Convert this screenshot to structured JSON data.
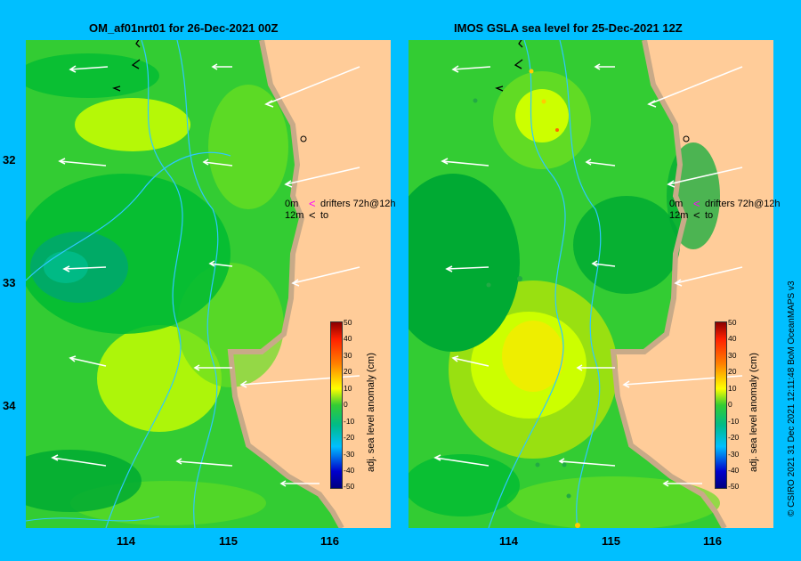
{
  "panels": [
    {
      "title": "OM_af01nrt01 for 26-Dec-2021 00Z"
    },
    {
      "title": "IMOS GSLA sea level  for 25-Dec-2021 12Z"
    }
  ],
  "axes": {
    "x_ticks": [
      "114",
      "115",
      "116"
    ],
    "y_ticks": [
      "32",
      "33",
      "34"
    ]
  },
  "legend": {
    "row1_depth": "0m",
    "row1_marker": "<",
    "row1_text": "drifters 72h@12h",
    "row2_depth": "12m",
    "row2_marker": "<",
    "row2_text": "to"
  },
  "colorbar": {
    "title": "adj. sea level anomaly (cm)",
    "ticks": [
      "50",
      "40",
      "30",
      "20",
      "10",
      "0",
      "-10",
      "-20",
      "-30",
      "-40",
      "-50"
    ]
  },
  "credit": "© CSIRO 2021   31 Dec 2021 12:11:48 BoM OceanMAPS v3",
  "colors": {
    "background": "#00bfff",
    "land": "#ffcc99",
    "coast": "#c8aa88",
    "currents": "#ffffff",
    "contours": "#2ec8ff",
    "drifter_marker": "#ff00ff"
  }
}
